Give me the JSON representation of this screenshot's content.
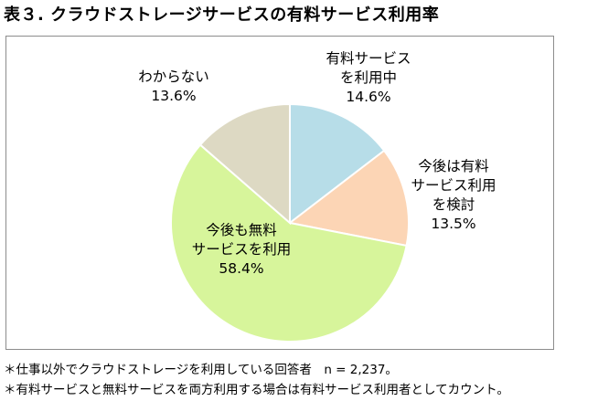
{
  "title": "表３. クラウドストレージサービスの有料サービス利用率",
  "chart_data": {
    "type": "pie",
    "slices": [
      {
        "label_lines": [
          "有料サービス",
          "を利用中"
        ],
        "value": 14.6,
        "value_text": "14.6%",
        "color": "#b7dde8"
      },
      {
        "label_lines": [
          "今後は有料",
          "サービス利用",
          "を検討"
        ],
        "value": 13.5,
        "value_text": "13.5%",
        "color": "#fcd5b5"
      },
      {
        "label_lines": [
          "今後も無料",
          "サービスを利用"
        ],
        "value": 58.4,
        "value_text": "58.4%",
        "color": "#d7f59b"
      },
      {
        "label_lines": [
          "わからない"
        ],
        "value": 13.6,
        "value_text": "13.6%",
        "color": "#ddd9c3"
      }
    ],
    "start_angle": "12 o'clock",
    "direction": "clockwise",
    "stroke_color": "#ffffff"
  },
  "notes": [
    "＊仕事以外でクラウドストレージを利用している回答者　n = 2,237。",
    "＊有料サービスと無料サービスを両方利用する場合は有料サービス利用者としてカウント。"
  ]
}
